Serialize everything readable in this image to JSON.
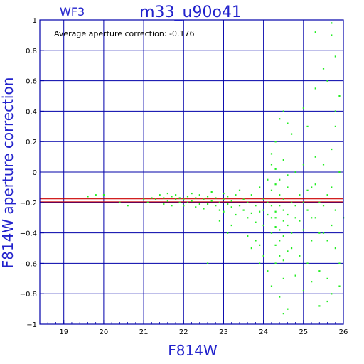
{
  "chart_data": {
    "type": "scatter",
    "title": "m33_u90o41",
    "subtitle": "WF3",
    "annotation": "Average aperture correction: -0.176",
    "xlabel": "F814W",
    "ylabel": "F814W aperture correction",
    "xlim": [
      18.4,
      26.0
    ],
    "ylim": [
      -1.0,
      1.0
    ],
    "xticks": [
      19,
      20,
      21,
      22,
      23,
      24,
      25,
      26
    ],
    "yticks": [
      -1,
      -0.8,
      -0.6,
      -0.4,
      -0.2,
      0,
      0.2,
      0.4,
      0.6,
      0.8,
      1
    ],
    "ytick_labels": [
      "−1",
      "−0.8",
      "−0.6",
      "−0.4",
      "−0.2",
      "0",
      "0.2",
      "0.4",
      "0.6",
      "0.8",
      "1"
    ],
    "grid": true,
    "reference_lines": [
      {
        "y": -0.176,
        "color": "#cc0000"
      },
      {
        "y": -0.196,
        "color": "#cc0000"
      }
    ],
    "colors": {
      "points": "#22ee22",
      "frame": "#0000aa",
      "text": "#2222cc"
    },
    "points": [
      [
        19.6,
        -0.16
      ],
      [
        19.8,
        -0.15
      ],
      [
        20.0,
        -0.15
      ],
      [
        20.4,
        -0.2
      ],
      [
        20.6,
        -0.22
      ],
      [
        21.0,
        -0.18
      ],
      [
        21.1,
        -0.2
      ],
      [
        21.2,
        -0.17
      ],
      [
        21.3,
        -0.18
      ],
      [
        21.4,
        -0.15
      ],
      [
        21.5,
        -0.17
      ],
      [
        21.5,
        -0.21
      ],
      [
        21.6,
        -0.14
      ],
      [
        21.6,
        -0.19
      ],
      [
        21.7,
        -0.16
      ],
      [
        21.7,
        -0.22
      ],
      [
        21.8,
        -0.18
      ],
      [
        21.8,
        -0.15
      ],
      [
        21.9,
        -0.2
      ],
      [
        21.9,
        -0.17
      ],
      [
        22.0,
        -0.18
      ],
      [
        22.0,
        -0.22
      ],
      [
        22.1,
        -0.16
      ],
      [
        22.1,
        -0.2
      ],
      [
        22.2,
        -0.14
      ],
      [
        22.2,
        -0.19
      ],
      [
        22.3,
        -0.17
      ],
      [
        22.3,
        -0.23
      ],
      [
        22.4,
        -0.21
      ],
      [
        22.4,
        -0.15
      ],
      [
        22.5,
        -0.18
      ],
      [
        22.5,
        -0.24
      ],
      [
        22.6,
        -0.16
      ],
      [
        22.6,
        -0.21
      ],
      [
        22.7,
        -0.19
      ],
      [
        22.7,
        -0.13
      ],
      [
        22.8,
        -0.22
      ],
      [
        22.8,
        -0.17
      ],
      [
        22.9,
        -0.25
      ],
      [
        22.9,
        -0.2
      ],
      [
        23.0,
        -0.18
      ],
      [
        23.0,
        -0.14
      ],
      [
        23.0,
        -0.26
      ],
      [
        23.1,
        -0.21
      ],
      [
        23.1,
        -0.16
      ],
      [
        23.2,
        -0.23
      ],
      [
        23.2,
        -0.19
      ],
      [
        23.3,
        -0.28
      ],
      [
        23.3,
        -0.15
      ],
      [
        23.4,
        -0.22
      ],
      [
        23.4,
        -0.12
      ],
      [
        23.5,
        -0.25
      ],
      [
        23.5,
        -0.18
      ],
      [
        23.6,
        -0.3
      ],
      [
        23.6,
        -0.2
      ],
      [
        23.7,
        -0.27
      ],
      [
        23.7,
        -0.15
      ],
      [
        23.8,
        -0.22
      ],
      [
        23.8,
        -0.33
      ],
      [
        23.9,
        -0.1
      ],
      [
        23.9,
        -0.26
      ],
      [
        24.0,
        -0.18
      ],
      [
        24.0,
        -0.35
      ],
      [
        24.1,
        -0.05
      ],
      [
        24.1,
        -0.28
      ],
      [
        24.2,
        -0.22
      ],
      [
        24.2,
        -0.4
      ],
      [
        24.3,
        0.02
      ],
      [
        24.3,
        -0.3
      ],
      [
        24.4,
        -0.15
      ],
      [
        24.4,
        -0.45
      ],
      [
        24.5,
        0.08
      ],
      [
        24.5,
        -0.25
      ],
      [
        24.6,
        -0.35
      ],
      [
        24.6,
        -0.1
      ],
      [
        24.7,
        -0.5
      ],
      [
        24.7,
        -0.2
      ],
      [
        24.8,
        0.0
      ],
      [
        24.8,
        -0.3
      ],
      [
        24.9,
        -0.55
      ],
      [
        24.9,
        -0.15
      ],
      [
        25.0,
        -0.38
      ],
      [
        25.0,
        0.05
      ],
      [
        25.1,
        -0.25
      ],
      [
        25.1,
        -0.6
      ],
      [
        25.2,
        -0.1
      ],
      [
        25.2,
        -0.45
      ],
      [
        25.3,
        0.1
      ],
      [
        25.3,
        -0.3
      ],
      [
        25.4,
        -0.65
      ],
      [
        25.4,
        -0.2
      ],
      [
        25.5,
        0.05
      ],
      [
        25.5,
        -0.4
      ],
      [
        25.6,
        -0.7
      ],
      [
        25.6,
        -0.15
      ],
      [
        25.7,
        0.15
      ],
      [
        25.7,
        -0.35
      ],
      [
        25.8,
        0.3
      ],
      [
        25.8,
        -0.5
      ],
      [
        25.9,
        0.0
      ],
      [
        24.3,
        -0.6
      ],
      [
        24.5,
        -0.7
      ],
      [
        24.2,
        -0.75
      ],
      [
        24.4,
        -0.82
      ],
      [
        24.6,
        -0.9
      ],
      [
        24.5,
        -0.93
      ],
      [
        24.1,
        -0.65
      ],
      [
        24.0,
        -0.55
      ],
      [
        23.9,
        -0.48
      ],
      [
        23.8,
        -0.45
      ],
      [
        23.9,
        -0.6
      ],
      [
        24.2,
        0.12
      ],
      [
        24.3,
        0.2
      ],
      [
        24.4,
        0.35
      ],
      [
        24.5,
        0.4
      ],
      [
        24.6,
        0.32
      ],
      [
        24.7,
        0.25
      ],
      [
        25.0,
        0.42
      ],
      [
        25.1,
        0.3
      ],
      [
        25.3,
        0.55
      ],
      [
        25.5,
        0.68
      ],
      [
        25.6,
        0.6
      ],
      [
        25.7,
        0.9
      ],
      [
        25.8,
        0.76
      ],
      [
        25.3,
        0.92
      ],
      [
        25.7,
        0.98
      ],
      [
        25.9,
        0.5
      ],
      [
        25.8,
        0.4
      ],
      [
        25.6,
        -0.85
      ],
      [
        25.7,
        -0.8
      ],
      [
        25.9,
        -0.75
      ],
      [
        25.4,
        -0.88
      ],
      [
        25.2,
        -0.72
      ],
      [
        25.0,
        -0.78
      ],
      [
        24.8,
        -0.68
      ],
      [
        23.6,
        -0.42
      ],
      [
        23.7,
        -0.5
      ],
      [
        23.2,
        -0.35
      ],
      [
        23.1,
        -0.4
      ],
      [
        22.9,
        -0.32
      ],
      [
        22.6,
        -0.6
      ],
      [
        24.4,
        -0.38
      ],
      [
        24.5,
        -0.32
      ],
      [
        24.3,
        -0.26
      ],
      [
        24.4,
        -0.22
      ],
      [
        24.6,
        -0.28
      ],
      [
        24.5,
        -0.18
      ],
      [
        24.2,
        -0.12
      ],
      [
        24.3,
        -0.08
      ],
      [
        24.4,
        -0.05
      ],
      [
        24.6,
        -0.02
      ],
      [
        24.2,
        0.05
      ],
      [
        24.5,
        -0.42
      ],
      [
        24.3,
        -0.48
      ],
      [
        24.6,
        -0.52
      ],
      [
        24.4,
        -0.55
      ],
      [
        24.2,
        -0.3
      ],
      [
        24.1,
        -0.2
      ],
      [
        24.0,
        -0.25
      ],
      [
        24.3,
        -0.36
      ],
      [
        24.5,
        -0.58
      ],
      [
        24.7,
        -0.4
      ],
      [
        24.8,
        -0.22
      ],
      [
        24.9,
        -0.32
      ],
      [
        25.0,
        -0.2
      ],
      [
        25.1,
        -0.12
      ],
      [
        25.2,
        -0.3
      ],
      [
        25.3,
        -0.08
      ],
      [
        25.4,
        -0.4
      ],
      [
        25.5,
        -0.22
      ],
      [
        25.6,
        -0.45
      ],
      [
        25.7,
        -0.1
      ],
      [
        25.8,
        -0.25
      ],
      [
        25.9,
        -0.6
      ],
      [
        26.0,
        -0.3
      ]
    ]
  }
}
